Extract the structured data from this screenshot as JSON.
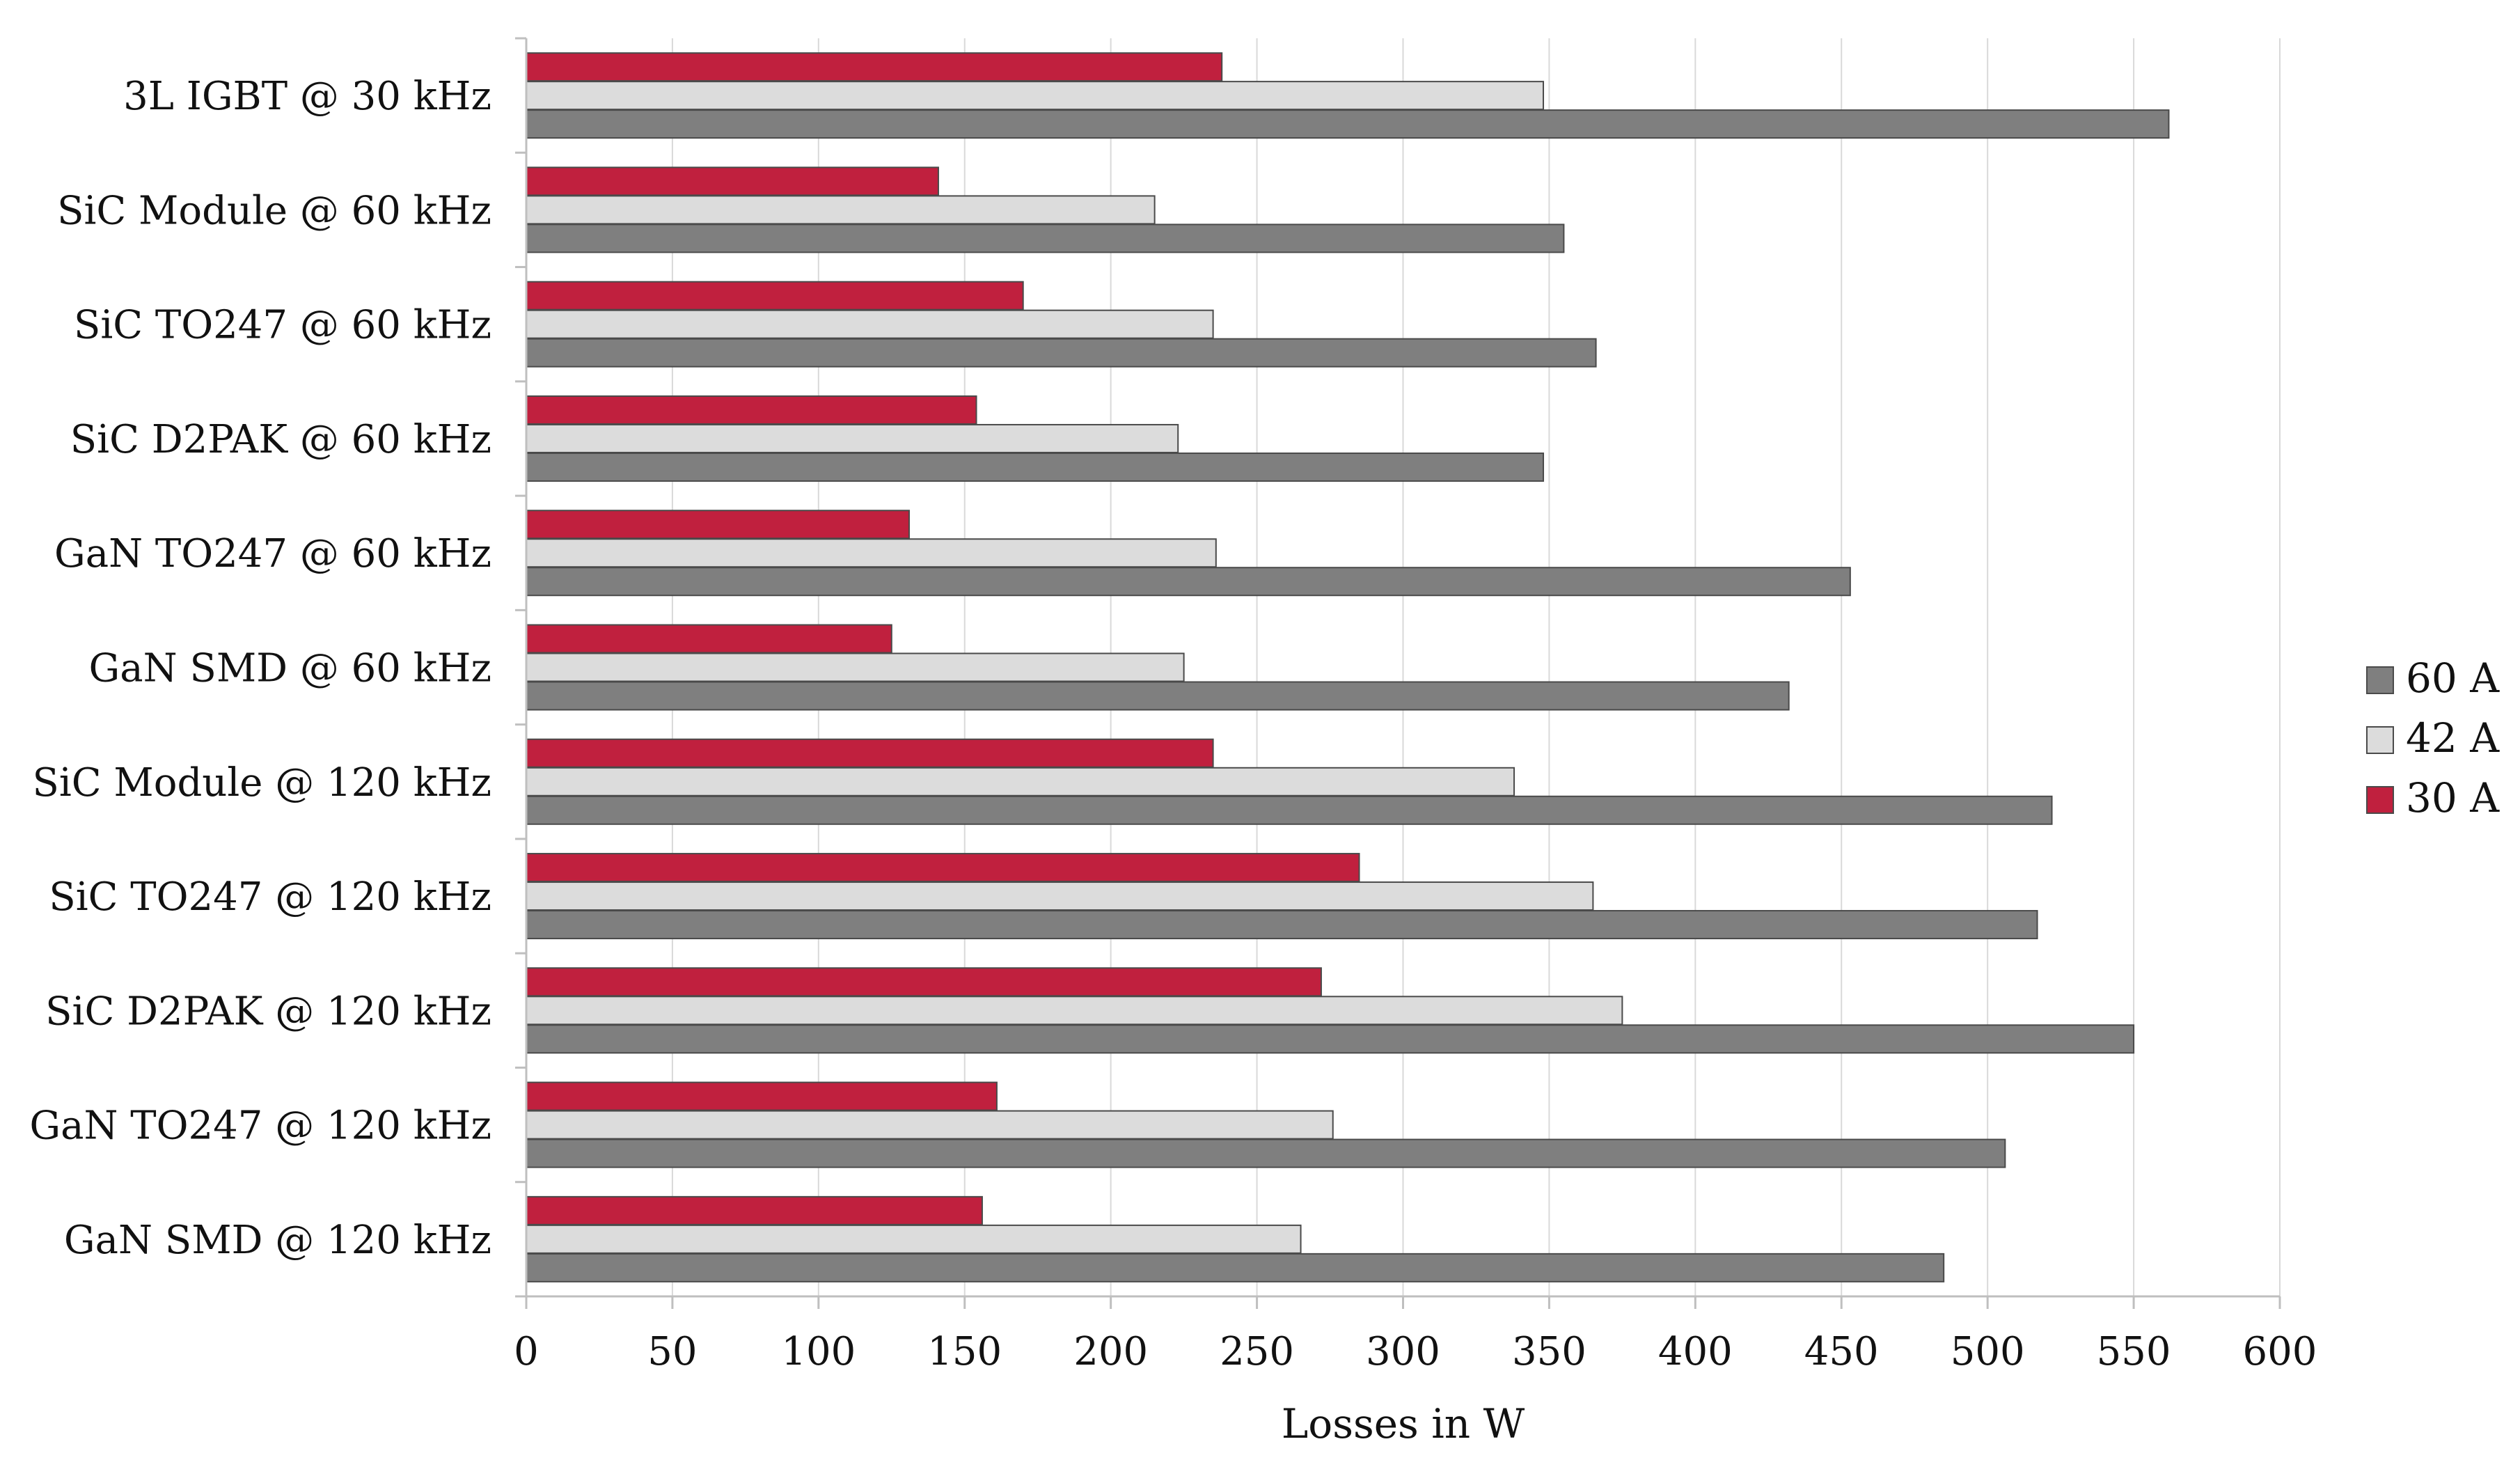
{
  "chart_data": {
    "type": "bar",
    "orientation": "horizontal",
    "categories": [
      "3L IGBT @ 30 kHz",
      "SiC Module @ 60 kHz",
      "SiC TO247 @ 60 kHz",
      "SiC D2PAK @ 60 kHz",
      "GaN TO247 @ 60 kHz",
      "GaN SMD @ 60 kHz",
      "SiC Module @ 120 kHz",
      "SiC TO247 @ 120 kHz",
      "SiC D2PAK @ 120 kHz",
      "GaN TO247 @ 120 kHz",
      "GaN SMD @ 120 kHz"
    ],
    "series": [
      {
        "name": "30 A",
        "color": "#c0203e",
        "values": [
          238,
          141,
          170,
          154,
          131,
          125,
          235,
          285,
          272,
          161,
          156
        ]
      },
      {
        "name": "42 A",
        "color": "#dcdcdc",
        "values": [
          348,
          215,
          235,
          223,
          236,
          225,
          338,
          365,
          375,
          276,
          265
        ]
      },
      {
        "name": "60 A",
        "color": "#7f7f7f",
        "values": [
          562,
          355,
          366,
          348,
          453,
          432,
          522,
          517,
          550,
          506,
          485
        ]
      }
    ],
    "legend_order": [
      "60 A",
      "42 A",
      "30 A"
    ],
    "xlabel": "Losses in W",
    "ylabel": "",
    "xlim": [
      0,
      600
    ],
    "xticks": [
      0,
      50,
      100,
      150,
      200,
      250,
      300,
      350,
      400,
      450,
      500,
      550,
      600
    ],
    "grid": "vertical",
    "legend_position": "right"
  }
}
